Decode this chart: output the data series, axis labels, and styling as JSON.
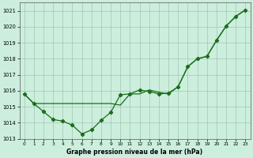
{
  "title": "Graphe pression niveau de la mer (hPa)",
  "background_color": "#cceedd",
  "grid_color": "#99bbaa",
  "line_color": "#1a6e1a",
  "xlim": [
    -0.5,
    23.5
  ],
  "ylim": [
    1013,
    1021.5
  ],
  "yticks": [
    1013,
    1014,
    1015,
    1016,
    1017,
    1018,
    1019,
    1020,
    1021
  ],
  "xticks": [
    0,
    1,
    2,
    3,
    4,
    5,
    6,
    7,
    8,
    9,
    10,
    11,
    12,
    13,
    14,
    15,
    16,
    17,
    18,
    19,
    20,
    21,
    22,
    23
  ],
  "series1_x": [
    0,
    1,
    2,
    3,
    4,
    5,
    6,
    7,
    8,
    9,
    10,
    11,
    12,
    13,
    14,
    15,
    16,
    17,
    18,
    19,
    20,
    21,
    22,
    23
  ],
  "series1_y": [
    1015.8,
    1015.2,
    1014.7,
    1014.2,
    1014.1,
    1013.85,
    1013.3,
    1013.55,
    1014.15,
    1014.65,
    1015.75,
    1015.8,
    1016.05,
    1015.95,
    1015.8,
    1015.85,
    1016.25,
    1017.5,
    1018.0,
    1018.15,
    1019.15,
    1020.05,
    1020.65,
    1021.05
  ],
  "series2_x": [
    0,
    1,
    2,
    3,
    4,
    5,
    6,
    7,
    8,
    9,
    10,
    11,
    12,
    13,
    14,
    15,
    16,
    17,
    18,
    19,
    20,
    21,
    22,
    23
  ],
  "series2_y": [
    1015.8,
    1015.2,
    1015.2,
    1015.2,
    1015.2,
    1015.2,
    1015.2,
    1015.2,
    1015.2,
    1015.2,
    1015.1,
    1015.8,
    1015.8,
    1016.05,
    1015.9,
    1015.8,
    1016.25,
    1017.5,
    1018.0,
    1018.15,
    1019.15,
    1020.05,
    1020.65,
    1021.05
  ],
  "fig_width": 3.2,
  "fig_height": 2.0,
  "dpi": 100
}
